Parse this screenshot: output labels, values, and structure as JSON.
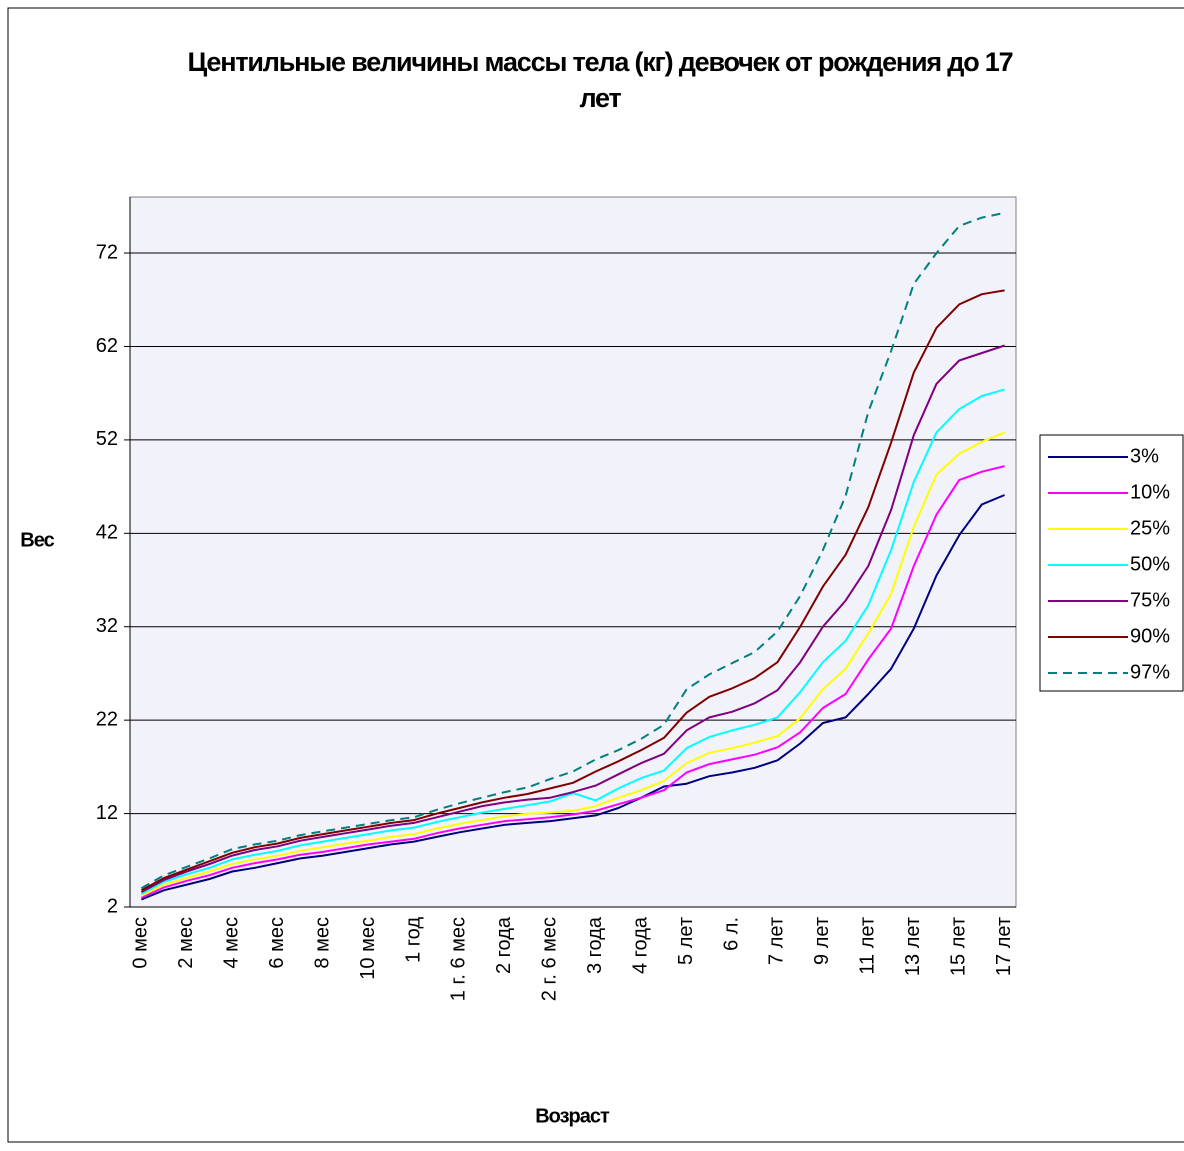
{
  "chart_data": {
    "type": "line",
    "title": "Центильные величины массы тела (кг) девочек от рождения до 17 лет",
    "x_label": "Возраст",
    "y_label": "Вес",
    "categories": [
      "0 мес",
      null,
      "2 мес",
      null,
      "4 мес",
      null,
      "6 мес",
      null,
      "8 мес",
      null,
      "10 мес",
      null,
      "1 год",
      null,
      "1 г. 6 мес",
      null,
      "2 года",
      null,
      "2 г. 6 мес",
      null,
      "3 года",
      null,
      "4 года",
      null,
      "5 лет",
      null,
      "6 л.",
      null,
      "7 лет",
      null,
      "9 лет",
      null,
      "11 лет",
      null,
      "13 лет",
      null,
      "15 лет",
      null,
      "17 лет"
    ],
    "series": [
      {
        "name": "3%",
        "color": "#000080",
        "values": [
          2.8,
          3.8,
          4.4,
          5.0,
          5.8,
          6.2,
          6.7,
          7.2,
          7.5,
          7.9,
          8.3,
          8.7,
          9.0,
          9.5,
          10.0,
          10.4,
          10.8,
          11.0,
          11.2,
          11.5,
          11.8,
          12.6,
          13.7,
          14.9,
          15.2,
          16.0,
          16.4,
          16.9,
          17.7,
          19.5,
          21.7,
          22.3,
          24.8,
          27.5,
          31.8,
          37.5,
          41.8,
          45.1,
          46.1
        ]
      },
      {
        "name": "10%",
        "color": "#ff00ff",
        "values": [
          3.0,
          4.1,
          4.8,
          5.4,
          6.2,
          6.7,
          7.1,
          7.6,
          7.9,
          8.3,
          8.7,
          9.0,
          9.3,
          9.9,
          10.4,
          10.8,
          11.2,
          11.4,
          11.6,
          11.9,
          12.3,
          13.0,
          13.7,
          14.5,
          16.4,
          17.3,
          17.8,
          18.3,
          19.1,
          20.7,
          23.3,
          24.8,
          28.5,
          31.8,
          38.5,
          44.0,
          47.7,
          48.6,
          49.2
        ]
      },
      {
        "name": "25%",
        "color": "#ffff00",
        "values": [
          3.2,
          4.4,
          5.1,
          5.8,
          6.6,
          7.1,
          7.5,
          8.0,
          8.4,
          8.8,
          9.1,
          9.5,
          9.8,
          10.4,
          10.9,
          11.3,
          11.7,
          12.0,
          12.1,
          12.3,
          12.8,
          13.7,
          14.5,
          15.5,
          17.4,
          18.5,
          19.0,
          19.6,
          20.3,
          22.2,
          25.3,
          27.5,
          31.3,
          35.5,
          42.7,
          48.3,
          50.5,
          51.8,
          52.8
        ]
      },
      {
        "name": "50%",
        "color": "#00ffff",
        "values": [
          3.4,
          4.7,
          5.5,
          6.2,
          7.1,
          7.6,
          8.0,
          8.6,
          9.0,
          9.4,
          9.8,
          10.2,
          10.5,
          11.1,
          11.6,
          12.1,
          12.5,
          12.9,
          13.3,
          14.2,
          13.4,
          14.7,
          15.8,
          16.6,
          19.0,
          20.2,
          20.9,
          21.5,
          22.3,
          25.0,
          28.2,
          30.5,
          34.3,
          40.2,
          47.5,
          52.8,
          55.3,
          56.7,
          57.4
        ]
      },
      {
        "name": "75%",
        "color": "#800080",
        "values": [
          3.6,
          4.9,
          5.8,
          6.6,
          7.5,
          8.1,
          8.5,
          9.1,
          9.5,
          9.9,
          10.3,
          10.7,
          11.0,
          11.6,
          12.2,
          12.8,
          13.2,
          13.5,
          13.7,
          14.3,
          15.0,
          16.2,
          17.4,
          18.4,
          20.9,
          22.3,
          22.9,
          23.8,
          25.2,
          28.2,
          32.0,
          34.8,
          38.5,
          44.5,
          52.5,
          58.0,
          60.5,
          61.3,
          62.1
        ]
      },
      {
        "name": "90%",
        "color": "#800000",
        "values": [
          3.8,
          5.1,
          6.0,
          6.9,
          7.8,
          8.4,
          8.8,
          9.4,
          9.8,
          10.2,
          10.6,
          11.0,
          11.3,
          12.0,
          12.6,
          13.2,
          13.7,
          14.1,
          14.7,
          15.3,
          16.5,
          17.6,
          18.8,
          20.1,
          22.8,
          24.5,
          25.4,
          26.5,
          28.2,
          32.0,
          36.3,
          39.7,
          44.8,
          51.7,
          59.2,
          64.0,
          66.5,
          67.6,
          68.0
        ]
      },
      {
        "name": "97%",
        "color": "#008080",
        "dashed": true,
        "values": [
          4.0,
          5.4,
          6.3,
          7.2,
          8.2,
          8.7,
          9.1,
          9.7,
          10.1,
          10.5,
          10.9,
          11.3,
          11.6,
          12.4,
          13.1,
          13.7,
          14.3,
          14.8,
          15.7,
          16.5,
          17.8,
          18.8,
          20.0,
          21.5,
          25.3,
          26.9,
          28.1,
          29.3,
          31.5,
          35.3,
          40.2,
          46.0,
          55.0,
          61.5,
          68.7,
          72.0,
          74.9,
          75.8,
          76.3
        ]
      }
    ],
    "ylim": [
      2,
      78
    ],
    "yticks": [
      2,
      12,
      22,
      32,
      42,
      52,
      62,
      72
    ],
    "grid": true,
    "legend": "right",
    "plot_background": "#f2f2fb"
  }
}
